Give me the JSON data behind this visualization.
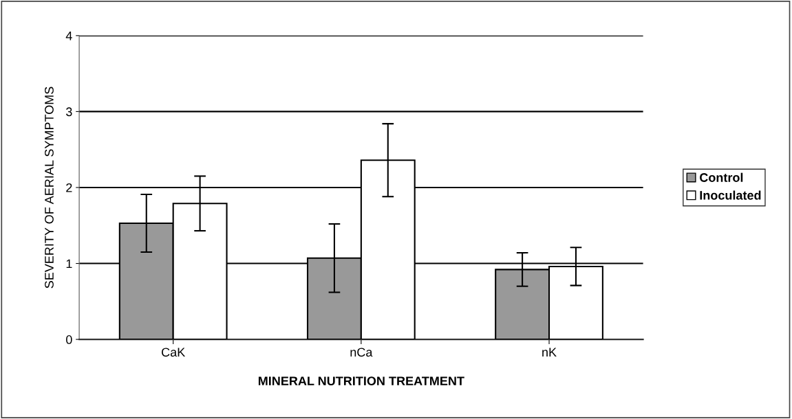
{
  "chart_data": {
    "type": "bar",
    "xlabel": "MINERAL NUTRITION TREATMENT",
    "ylabel": "SEVERITY OF AERIAL SYMPTOMS",
    "categories": [
      "CaK",
      "nCa",
      "nK"
    ],
    "series": [
      {
        "name": "Control",
        "color": "#999999",
        "values": [
          1.53,
          1.07,
          0.92
        ],
        "errors": [
          0.38,
          0.45,
          0.22
        ]
      },
      {
        "name": "Inoculated",
        "color": "#ffffff",
        "values": [
          1.79,
          2.36,
          0.96
        ],
        "errors": [
          0.36,
          0.48,
          0.25
        ]
      }
    ],
    "ylim": [
      0,
      4
    ],
    "yticks": [
      0,
      1,
      2,
      3,
      4
    ],
    "grid": "y",
    "legend": "right"
  }
}
